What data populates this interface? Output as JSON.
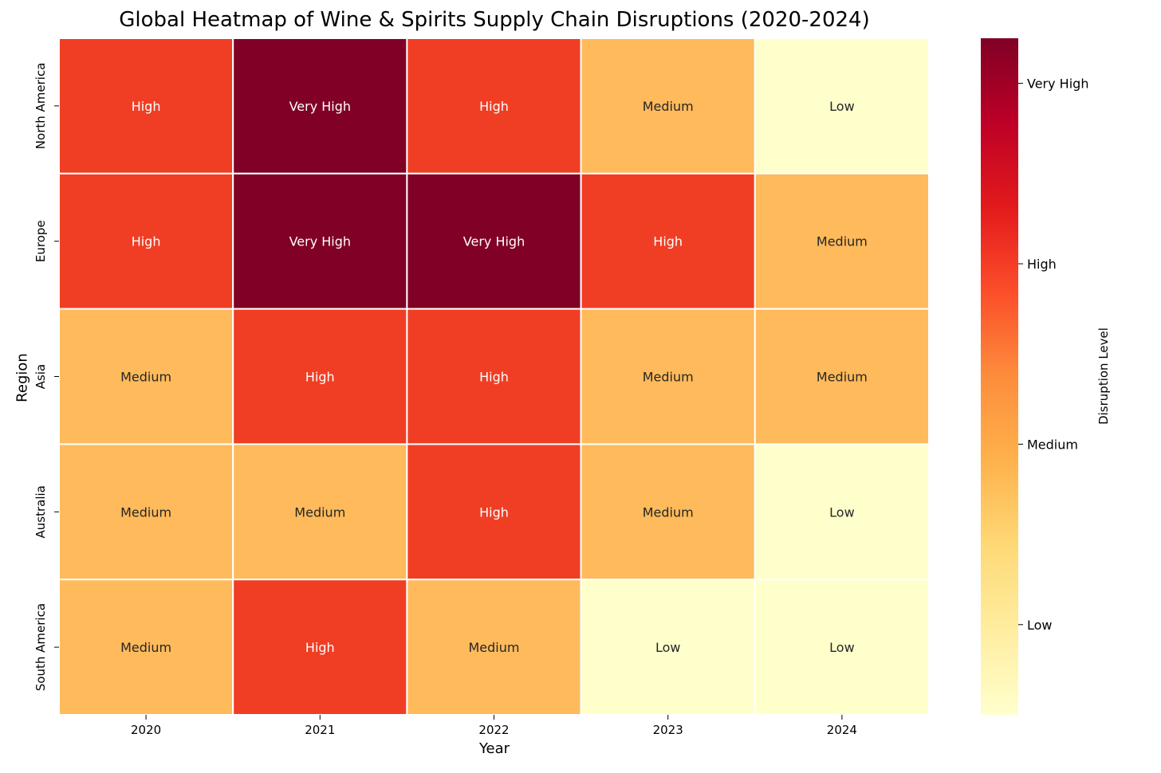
{
  "chart_data": {
    "type": "heatmap",
    "title": "Global Heatmap of Wine & Spirits Supply Chain Disruptions (2020-2024)",
    "xlabel": "Year",
    "ylabel": "Region",
    "x": [
      "2020",
      "2021",
      "2022",
      "2023",
      "2024"
    ],
    "y": [
      "North America",
      "Europe",
      "Asia",
      "Australia",
      "South America"
    ],
    "levels": [
      "Low",
      "Medium",
      "High",
      "Very High"
    ],
    "level_values": {
      "Low": 1,
      "Medium": 2,
      "High": 3,
      "Very High": 4
    },
    "level_colors": {
      "Low": "#ffffcc",
      "Medium": "#feba5b",
      "High": "#f03e24",
      "Very High": "#800026"
    },
    "level_text_colors": {
      "Low": "#262626",
      "Medium": "#262626",
      "High": "#ffffff",
      "Very High": "#ffffff"
    },
    "values": [
      [
        "High",
        "Very High",
        "High",
        "Medium",
        "Low"
      ],
      [
        "High",
        "Very High",
        "Very High",
        "High",
        "Medium"
      ],
      [
        "Medium",
        "High",
        "High",
        "Medium",
        "Medium"
      ],
      [
        "Medium",
        "Medium",
        "High",
        "Medium",
        "Low"
      ],
      [
        "Medium",
        "High",
        "Medium",
        "Low",
        "Low"
      ]
    ],
    "colorbar": {
      "label": "Disruption Level",
      "range": [
        0.5,
        4.25
      ],
      "ticks": [
        1,
        2,
        3,
        4
      ],
      "tick_labels": [
        "Low",
        "Medium",
        "High",
        "Very High"
      ],
      "gradient": [
        "#ffffcc",
        "#ffeda0",
        "#fed976",
        "#feb24c",
        "#fd8d3c",
        "#fc4e2a",
        "#e31a1c",
        "#bd0026",
        "#800026"
      ]
    }
  }
}
